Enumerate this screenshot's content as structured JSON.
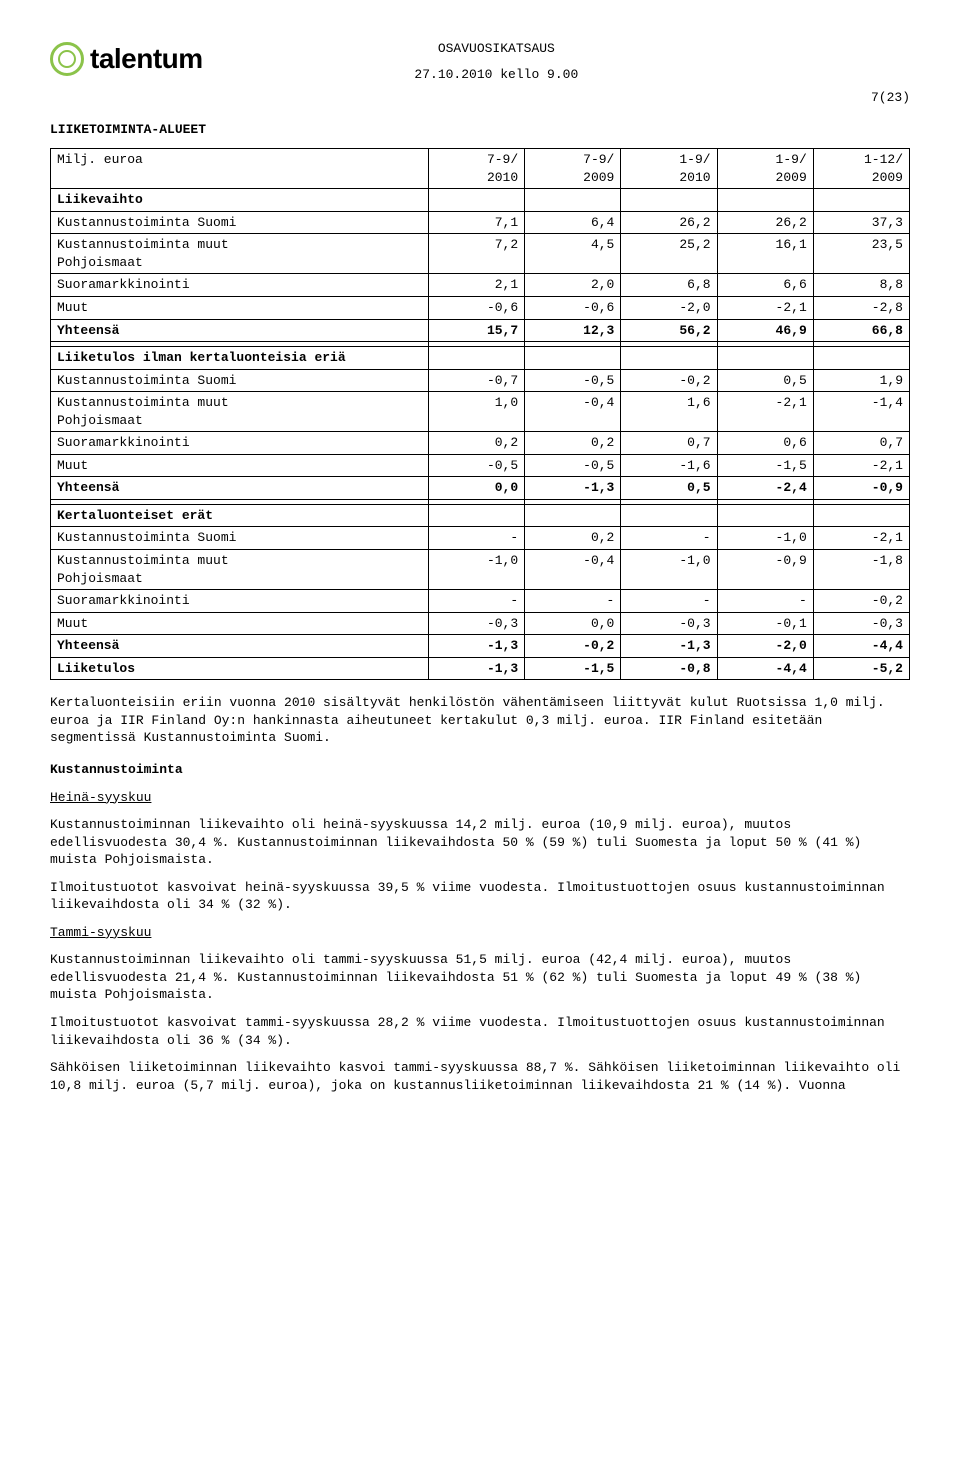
{
  "header": {
    "logo_text": "talentum",
    "title": "OSAVUOSIKATSAUS",
    "dateline": "27.10.2010 kello 9.00",
    "page_indicator": "7(23)"
  },
  "section_title": "LIIKETOIMINTA-ALUEET",
  "table": {
    "row_header": "Milj. euroa",
    "cols": [
      {
        "l1": "7-9/",
        "l2": "2010"
      },
      {
        "l1": "7-9/",
        "l2": "2009"
      },
      {
        "l1": "1-9/",
        "l2": "2010"
      },
      {
        "l1": "1-9/",
        "l2": "2009"
      },
      {
        "l1": "1-12/",
        "l2": "2009"
      }
    ],
    "groups": [
      {
        "title": "Liikevaihto",
        "rows": [
          {
            "label": "Kustannustoiminta Suomi",
            "v": [
              "7,1",
              "6,4",
              "26,2",
              "26,2",
              "37,3"
            ]
          },
          {
            "label": "Kustannustoiminta muut Pohjoismaat",
            "v": [
              "7,2",
              "4,5",
              "25,2",
              "16,1",
              "23,5"
            ]
          },
          {
            "label": "Suoramarkkinointi",
            "v": [
              "2,1",
              "2,0",
              "6,8",
              "6,6",
              "8,8"
            ]
          },
          {
            "label": "Muut",
            "v": [
              "-0,6",
              "-0,6",
              "-2,0",
              "-2,1",
              "-2,8"
            ]
          },
          {
            "label": "Yhteensä",
            "v": [
              "15,7",
              "12,3",
              "56,2",
              "46,9",
              "66,8"
            ],
            "bold": true
          }
        ]
      },
      {
        "title": "Liiketulos ilman kertaluonteisia eriä",
        "rows": [
          {
            "label": "Kustannustoiminta Suomi",
            "v": [
              "-0,7",
              "-0,5",
              "-0,2",
              "0,5",
              "1,9"
            ]
          },
          {
            "label": "Kustannustoiminta muut Pohjoismaat",
            "v": [
              "1,0",
              "-0,4",
              "1,6",
              "-2,1",
              "-1,4"
            ]
          },
          {
            "label": "Suoramarkkinointi",
            "v": [
              "0,2",
              "0,2",
              "0,7",
              "0,6",
              "0,7"
            ]
          },
          {
            "label": "Muut",
            "v": [
              "-0,5",
              "-0,5",
              "-1,6",
              "-1,5",
              "-2,1"
            ]
          },
          {
            "label": "Yhteensä",
            "v": [
              "0,0",
              "-1,3",
              "0,5",
              "-2,4",
              "-0,9"
            ],
            "bold": true
          }
        ]
      },
      {
        "title": "Kertaluonteiset erät",
        "rows": [
          {
            "label": "Kustannustoiminta Suomi",
            "v": [
              "-",
              "0,2",
              "-",
              "-1,0",
              "-2,1"
            ]
          },
          {
            "label": "Kustannustoiminta muut Pohjoismaat",
            "v": [
              "-1,0",
              "-0,4",
              "-1,0",
              "-0,9",
              "-1,8"
            ]
          },
          {
            "label": "Suoramarkkinointi",
            "v": [
              "-",
              "-",
              "-",
              "-",
              "-0,2"
            ]
          },
          {
            "label": "Muut",
            "v": [
              "-0,3",
              "0,0",
              "-0,3",
              "-0,1",
              "-0,3"
            ]
          },
          {
            "label": "Yhteensä",
            "v": [
              "-1,3",
              "-0,2",
              "-1,3",
              "-2,0",
              "-4,4"
            ],
            "bold": true
          },
          {
            "label": "Liiketulos",
            "v": [
              "-1,3",
              "-1,5",
              "-0,8",
              "-4,4",
              "-5,2"
            ],
            "bold": true
          }
        ]
      }
    ]
  },
  "note_after_table": "Kertaluonteisiin eriin vuonna 2010 sisältyvät henkilöstön vähentämiseen liittyvät kulut Ruotsissa 1,0 milj. euroa ja IIR Finland Oy:n hankinnasta aiheutuneet kertakulut 0,3 milj. euroa. IIR Finland esitetään segmentissä Kustannustoiminta Suomi.",
  "sections": [
    {
      "heading": "Kustannustoiminta",
      "sub": [
        {
          "title": "Heinä-syyskuu",
          "paras": [
            "Kustannustoiminnan liikevaihto oli heinä-syyskuussa 14,2 milj. euroa (10,9 milj. euroa), muutos edellisvuodesta 30,4 %. Kustannustoiminnan liikevaihdosta 50 % (59 %) tuli Suomesta ja loput 50 % (41 %) muista Pohjoismaista.",
            "Ilmoitustuotot kasvoivat heinä-syyskuussa 39,5 % viime vuodesta. Ilmoitustuottojen osuus kustannustoiminnan liikevaihdosta oli 34 % (32 %)."
          ]
        },
        {
          "title": "Tammi-syyskuu",
          "paras": [
            "Kustannustoiminnan liikevaihto oli tammi-syyskuussa 51,5 milj. euroa (42,4 milj. euroa), muutos edellisvuodesta 21,4 %. Kustannustoiminnan liikevaihdosta 51 % (62 %) tuli Suomesta ja loput 49 % (38 %) muista Pohjoismaista.",
            "Ilmoitustuotot kasvoivat tammi-syyskuussa 28,2 % viime vuodesta. Ilmoitustuottojen osuus kustannustoiminnan liikevaihdosta oli 36 % (34 %).",
            "Sähköisen liiketoiminnan liikevaihto kasvoi tammi-syyskuussa 88,7 %. Sähköisen liiketoiminnan liikevaihto oli 10,8 milj. euroa (5,7 milj. euroa), joka on kustannusliiketoiminnan liikevaihdosta 21 % (14 %). Vuonna"
          ]
        }
      ]
    }
  ]
}
